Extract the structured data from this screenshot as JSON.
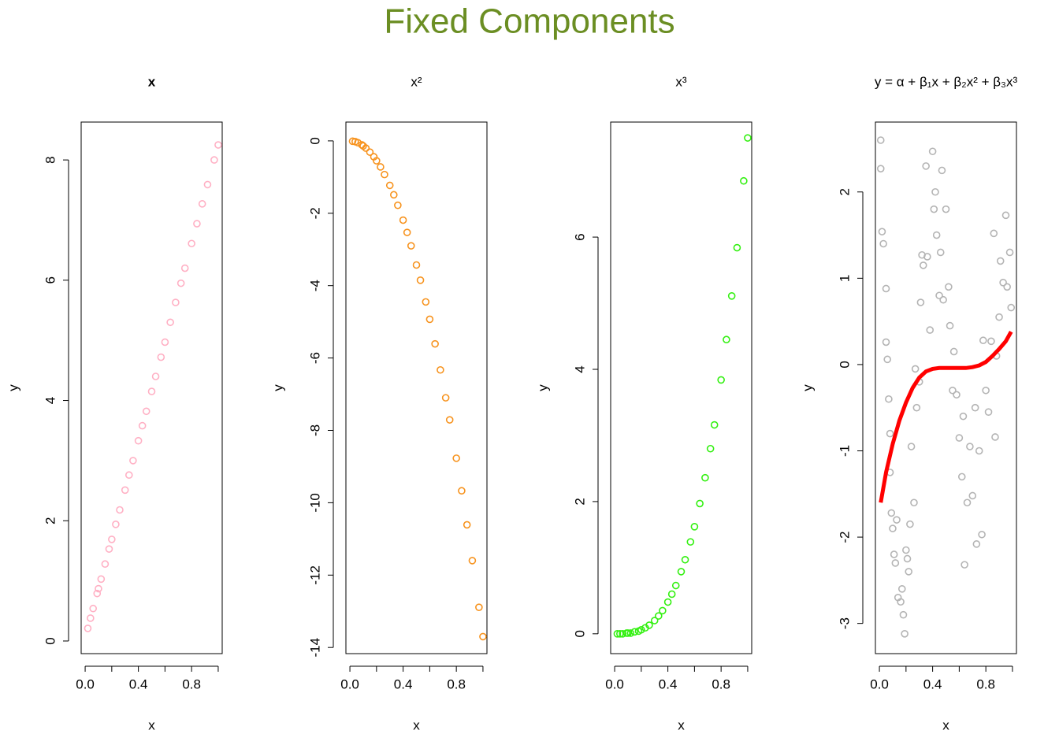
{
  "title": "Fixed Components",
  "title_color": "#6b8e23",
  "chart_data": [
    {
      "type": "scatter",
      "title": "x",
      "title_weight": "bold",
      "x_label": "x",
      "y_label": "y",
      "color": "#ffb0c4",
      "xlim": [
        -0.03,
        1.03
      ],
      "ylim": [
        -0.21,
        8.63
      ],
      "xticks": [
        {
          "value": 0,
          "label": "0.0"
        },
        {
          "value": 0.4,
          "label": "0.4"
        },
        {
          "value": 0.8,
          "label": "0.8"
        }
      ],
      "xminorticks": [
        0.2,
        0.6,
        1.0
      ],
      "yticks": [
        0,
        2,
        4,
        6,
        8
      ],
      "x": [
        0.02,
        0.04,
        0.06,
        0.09,
        0.1,
        0.12,
        0.15,
        0.18,
        0.2,
        0.23,
        0.26,
        0.3,
        0.33,
        0.36,
        0.4,
        0.43,
        0.46,
        0.5,
        0.53,
        0.57,
        0.6,
        0.64,
        0.68,
        0.72,
        0.75,
        0.8,
        0.84,
        0.88,
        0.92,
        0.97,
        1.0
      ],
      "y": [
        0.21,
        0.38,
        0.54,
        0.79,
        0.87,
        1.03,
        1.28,
        1.53,
        1.69,
        1.94,
        2.18,
        2.51,
        2.76,
        3.0,
        3.33,
        3.58,
        3.82,
        4.15,
        4.4,
        4.72,
        4.97,
        5.3,
        5.63,
        5.95,
        6.2,
        6.61,
        6.94,
        7.27,
        7.59,
        8.0,
        8.25
      ]
    },
    {
      "type": "scatter",
      "title": "x²",
      "x_label": "x",
      "y_label": "y",
      "color": "#f7931e",
      "xlim": [
        -0.03,
        1.03
      ],
      "ylim": [
        -14.17,
        0.52
      ],
      "xticks": [
        {
          "value": 0,
          "label": "0.0"
        },
        {
          "value": 0.4,
          "label": "0.4"
        },
        {
          "value": 0.8,
          "label": "0.8"
        }
      ],
      "xminorticks": [
        0.2,
        0.6,
        1.0
      ],
      "yticks": [
        0,
        -2,
        -4,
        -6,
        -8,
        -10,
        -12,
        -14
      ],
      "x": [
        0.02,
        0.04,
        0.06,
        0.09,
        0.1,
        0.12,
        0.15,
        0.18,
        0.2,
        0.23,
        0.26,
        0.3,
        0.33,
        0.36,
        0.4,
        0.43,
        0.46,
        0.5,
        0.53,
        0.57,
        0.6,
        0.64,
        0.68,
        0.72,
        0.75,
        0.8,
        0.84,
        0.88,
        0.92,
        0.97,
        1.0
      ],
      "y": [
        -0.01,
        -0.02,
        -0.05,
        -0.11,
        -0.14,
        -0.2,
        -0.31,
        -0.44,
        -0.55,
        -0.72,
        -0.93,
        -1.23,
        -1.49,
        -1.78,
        -2.19,
        -2.53,
        -2.9,
        -3.43,
        -3.85,
        -4.45,
        -4.93,
        -5.61,
        -6.33,
        -7.1,
        -7.71,
        -8.77,
        -9.67,
        -10.61,
        -11.6,
        -12.89,
        -13.7
      ]
    },
    {
      "type": "scatter",
      "title": "x³",
      "x_label": "x",
      "y_label": "y",
      "color": "#33f011",
      "xlim": [
        -0.03,
        1.03
      ],
      "ylim": [
        -0.3,
        7.74
      ],
      "xticks": [
        {
          "value": 0,
          "label": "0.0"
        },
        {
          "value": 0.4,
          "label": "0.4"
        },
        {
          "value": 0.8,
          "label": "0.8"
        }
      ],
      "xminorticks": [
        0.2,
        0.6,
        1.0
      ],
      "yticks": [
        0,
        2,
        4,
        6
      ],
      "x": [
        0.02,
        0.04,
        0.06,
        0.09,
        0.1,
        0.12,
        0.15,
        0.18,
        0.2,
        0.23,
        0.26,
        0.3,
        0.33,
        0.36,
        0.4,
        0.43,
        0.46,
        0.5,
        0.53,
        0.57,
        0.6,
        0.64,
        0.68,
        0.72,
        0.75,
        0.8,
        0.84,
        0.88,
        0.92,
        0.97,
        1.0
      ],
      "y": [
        0.0,
        0.0,
        0.0,
        0.01,
        0.01,
        0.01,
        0.03,
        0.04,
        0.06,
        0.09,
        0.13,
        0.2,
        0.27,
        0.35,
        0.48,
        0.6,
        0.73,
        0.94,
        1.12,
        1.39,
        1.62,
        1.97,
        2.36,
        2.8,
        3.16,
        3.84,
        4.45,
        5.11,
        5.84,
        6.85,
        7.5
      ]
    },
    {
      "type": "scatter",
      "title": "y = α + β₁x + β₂x² + β₃x³",
      "x_label": "x",
      "y_label": "y",
      "color": "#b4b4b4",
      "xlim": [
        -0.03,
        1.03
      ],
      "ylim": [
        -3.35,
        2.81
      ],
      "xticks": [
        {
          "value": 0,
          "label": "0.0"
        },
        {
          "value": 0.4,
          "label": "0.4"
        },
        {
          "value": 0.8,
          "label": "0.8"
        }
      ],
      "xminorticks": [
        0.2,
        0.6,
        1.0
      ],
      "yticks": [
        -3,
        -2,
        -1,
        0,
        1,
        2
      ],
      "x": [
        0.01,
        0.01,
        0.02,
        0.03,
        0.05,
        0.05,
        0.06,
        0.07,
        0.08,
        0.08,
        0.09,
        0.1,
        0.11,
        0.12,
        0.13,
        0.14,
        0.16,
        0.17,
        0.18,
        0.19,
        0.2,
        0.21,
        0.22,
        0.23,
        0.24,
        0.26,
        0.27,
        0.28,
        0.3,
        0.31,
        0.32,
        0.33,
        0.35,
        0.36,
        0.38,
        0.4,
        0.41,
        0.42,
        0.43,
        0.45,
        0.46,
        0.47,
        0.48,
        0.5,
        0.52,
        0.53,
        0.55,
        0.56,
        0.58,
        0.6,
        0.62,
        0.63,
        0.64,
        0.66,
        0.68,
        0.7,
        0.72,
        0.73,
        0.75,
        0.77,
        0.78,
        0.8,
        0.82,
        0.84,
        0.86,
        0.87,
        0.88,
        0.9,
        0.91,
        0.93,
        0.95,
        0.96,
        0.98,
        0.99
      ],
      "y": [
        2.6,
        2.27,
        1.54,
        1.4,
        0.88,
        0.26,
        0.06,
        -0.4,
        -0.8,
        -1.25,
        -1.72,
        -1.9,
        -2.2,
        -2.3,
        -1.8,
        -2.7,
        -2.75,
        -2.6,
        -2.9,
        -3.12,
        -2.15,
        -2.25,
        -2.4,
        -1.85,
        -0.95,
        -1.6,
        -0.05,
        -0.5,
        -0.2,
        0.72,
        1.27,
        1.15,
        2.3,
        1.25,
        0.4,
        2.47,
        1.8,
        2.0,
        1.5,
        0.8,
        1.3,
        2.25,
        0.75,
        1.8,
        0.9,
        0.45,
        -0.3,
        0.15,
        -0.35,
        -0.85,
        -1.3,
        -0.6,
        -2.32,
        -1.6,
        -0.95,
        -1.52,
        -0.5,
        -2.08,
        -1.0,
        -1.97,
        0.28,
        -0.3,
        -0.55,
        0.27,
        1.52,
        -0.84,
        0.1,
        0.55,
        1.2,
        0.95,
        1.73,
        0.9,
        1.3,
        0.66
      ],
      "fit": {
        "color": "#ff0000",
        "x": [
          0.01,
          0.05,
          0.1,
          0.15,
          0.2,
          0.25,
          0.3,
          0.35,
          0.4,
          0.45,
          0.5,
          0.55,
          0.6,
          0.65,
          0.7,
          0.75,
          0.8,
          0.85,
          0.9,
          0.95,
          0.99
        ],
        "y": [
          -1.6,
          -1.25,
          -0.92,
          -0.65,
          -0.44,
          -0.27,
          -0.15,
          -0.08,
          -0.05,
          -0.04,
          -0.04,
          -0.04,
          -0.04,
          -0.04,
          -0.03,
          -0.01,
          0.03,
          0.1,
          0.18,
          0.27,
          0.38
        ]
      }
    }
  ]
}
